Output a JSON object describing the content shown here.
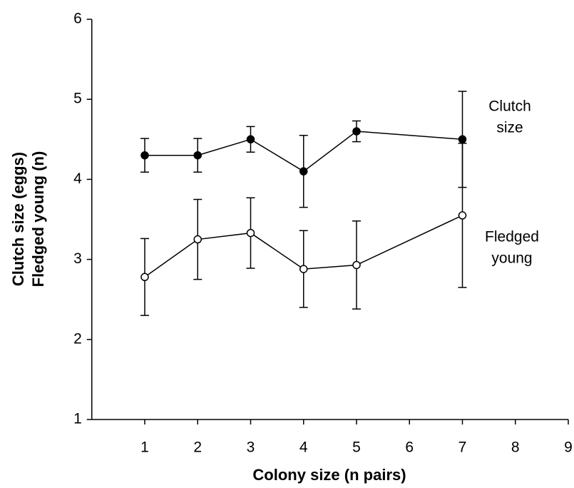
{
  "chart_data": {
    "type": "line",
    "xlabel": "Colony size  (n pairs)",
    "ylabel": [
      "Clutch size (eggs)",
      "Fledged young (n)"
    ],
    "xlim": [
      0,
      9
    ],
    "xticks": [
      1,
      2,
      3,
      4,
      5,
      6,
      7,
      8,
      9
    ],
    "ylim": [
      1,
      6
    ],
    "yticks": [
      1,
      2,
      3,
      4,
      5,
      6
    ],
    "x": [
      1,
      2,
      3,
      4,
      5,
      7
    ],
    "series": [
      {
        "name": [
          "Clutch",
          "size"
        ],
        "color": "#000000",
        "marker_fill": "#000000",
        "values": [
          4.3,
          4.3,
          4.5,
          4.1,
          4.6,
          4.5
        ],
        "errors": [
          0.21,
          0.21,
          0.16,
          0.45,
          0.13,
          0.6
        ]
      },
      {
        "name": [
          "Fledged",
          "young"
        ],
        "color": "#000000",
        "marker_fill": "#ffffff",
        "values": [
          2.78,
          3.25,
          3.33,
          2.88,
          2.93,
          3.55
        ],
        "errors": [
          0.48,
          0.5,
          0.44,
          0.48,
          0.55,
          0.9
        ]
      }
    ]
  }
}
